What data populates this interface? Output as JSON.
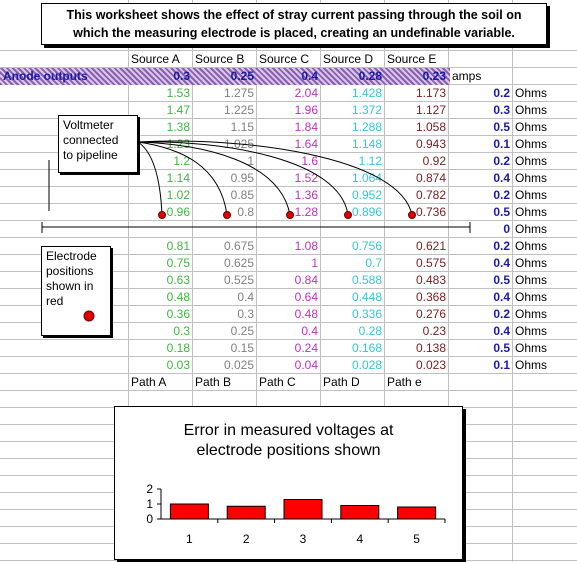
{
  "title_lines": [
    "This worksheet shows the effect of stray current passing through the soil on",
    "which the measuring electrode is placed, creating an undefinable variable."
  ],
  "headers": [
    "Source A",
    "Source B",
    "Source C",
    "Source D",
    "Source E"
  ],
  "anode": {
    "label": "Anode outputs",
    "values": [
      "0.3",
      "0.25",
      "0.4",
      "0.28",
      "0.23"
    ],
    "unit": "amps"
  },
  "ohms_label": "Ohms",
  "upper_rows": [
    {
      "a": "1.53",
      "b": "1.275",
      "c": "2.04",
      "d": "1.428",
      "e": "1.173",
      "ohm": "0.2"
    },
    {
      "a": "1.47",
      "b": "1.225",
      "c": "1.96",
      "d": "1.372",
      "e": "1.127",
      "ohm": "0.3"
    },
    {
      "a": "1.38",
      "b": "1.15",
      "c": "1.84",
      "d": "1.288",
      "e": "1.058",
      "ohm": "0.5"
    },
    {
      "a": "1.23",
      "b": "1.025",
      "c": "1.64",
      "d": "1.148",
      "e": "0.943",
      "ohm": "0.1"
    },
    {
      "a": "1.2",
      "b": "1",
      "c": "1.6",
      "d": "1.12",
      "e": "0.92",
      "ohm": "0.2"
    },
    {
      "a": "1.14",
      "b": "0.95",
      "c": "1.52",
      "d": "1.064",
      "e": "0.874",
      "ohm": "0.4"
    },
    {
      "a": "1.02",
      "b": "0.85",
      "c": "1.36",
      "d": "0.952",
      "e": "0.782",
      "ohm": "0.2"
    },
    {
      "a": "0.96",
      "b": "0.8",
      "c": "1.28",
      "d": "0.896",
      "e": "0.736",
      "ohm": "0.5"
    }
  ],
  "zero_ohm": "0",
  "lower_rows": [
    {
      "a": "0.81",
      "b": "0.675",
      "c": "1.08",
      "d": "0.756",
      "e": "0.621",
      "ohm": "0.2"
    },
    {
      "a": "0.75",
      "b": "0.625",
      "c": "1",
      "d": "0.7",
      "e": "0.575",
      "ohm": "0.4"
    },
    {
      "a": "0.63",
      "b": "0.525",
      "c": "0.84",
      "d": "0.588",
      "e": "0.483",
      "ohm": "0.5"
    },
    {
      "a": "0.48",
      "b": "0.4",
      "c": "0.64",
      "d": "0.448",
      "e": "0.368",
      "ohm": "0.4"
    },
    {
      "a": "0.36",
      "b": "0.3",
      "c": "0.48",
      "d": "0.336",
      "e": "0.276",
      "ohm": "0.2"
    },
    {
      "a": "0.3",
      "b": "0.25",
      "c": "0.4",
      "d": "0.28",
      "e": "0.23",
      "ohm": "0.4"
    },
    {
      "a": "0.18",
      "b": "0.15",
      "c": "0.24",
      "d": "0.168",
      "e": "0.138",
      "ohm": "0.5"
    },
    {
      "a": "0.03",
      "b": "0.025",
      "c": "0.04",
      "d": "0.028",
      "e": "0.023",
      "ohm": "0.1"
    }
  ],
  "paths": [
    "Path A",
    "Path B",
    "Path C",
    "Path D",
    "Path e"
  ],
  "callout_voltmeter": [
    "Voltmeter",
    "connected",
    "to pipeline"
  ],
  "callout_electrode": [
    "Electrode",
    "positions",
    "shown in",
    "red"
  ],
  "colors": {
    "a": "#3cb83c",
    "b": "#808080",
    "c": "#c030c0",
    "d": "#30c8d8",
    "e": "#7a2020",
    "ohm": "#1a1aa8",
    "dot": "#e00000"
  },
  "chart_data": {
    "type": "bar",
    "title": "Error in measured voltages at electrode positions shown",
    "title_lines": [
      "Error in measured voltages at",
      "electrode positions shown"
    ],
    "categories": [
      "1",
      "2",
      "3",
      "4",
      "5"
    ],
    "values": [
      1.0,
      0.85,
      1.3,
      0.9,
      0.8
    ],
    "ylim": [
      0,
      2
    ],
    "yticks": [
      "0",
      "1",
      "2"
    ],
    "bar_color": "#ff0000"
  }
}
